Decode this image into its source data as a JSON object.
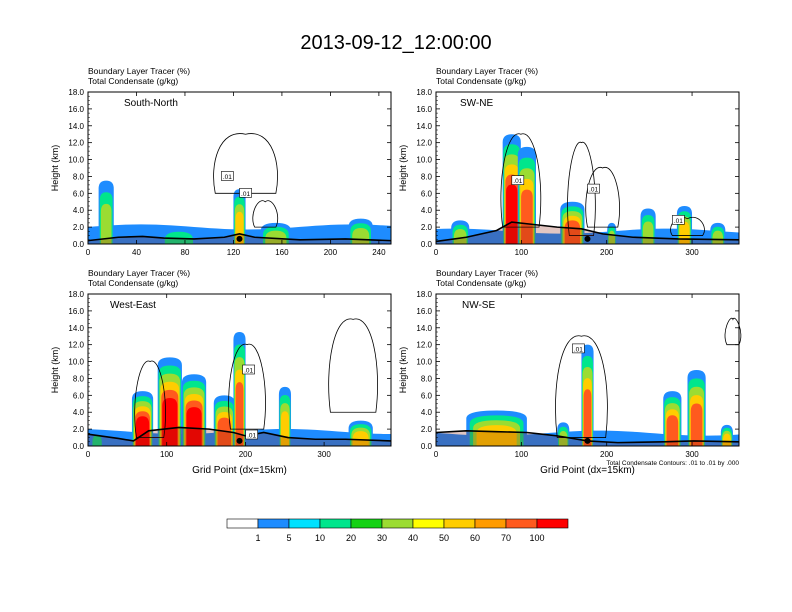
{
  "title": "2013-09-12_12:00:00",
  "footnote": "Total Condensate Contours: .01 to .01 by .000",
  "colorbar": {
    "colors": [
      "#ffffff",
      "#1e8cff",
      "#00e1ff",
      "#00e68c",
      "#14d214",
      "#9bdc32",
      "#ffff00",
      "#ffcd00",
      "#ff9b00",
      "#ff5a1e",
      "#ff0000"
    ],
    "labels": [
      "1",
      "5",
      "10",
      "20",
      "30",
      "40",
      "50",
      "60",
      "70",
      "100"
    ]
  },
  "chart_data": [
    {
      "type": "heatmap",
      "panel_label": "South-North",
      "subtitle_lines": [
        "Boundary Layer Tracer   (%)",
        "Total Condensate   (g/kg)"
      ],
      "ylabel": "Height (km)",
      "xlabel": "",
      "ylim": [
        0,
        18
      ],
      "yticks": [
        "0.0",
        "2.0",
        "4.0",
        "6.0",
        "8.0",
        "10.0",
        "12.0",
        "14.0",
        "16.0",
        "18.0"
      ],
      "xlim": [
        0,
        250
      ],
      "xticks": [
        0,
        40,
        80,
        120,
        160,
        200,
        240
      ],
      "contour_labels": [
        ".01",
        ".01"
      ]
    },
    {
      "type": "heatmap",
      "panel_label": "SW-NE",
      "subtitle_lines": [
        "Boundary Layer Tracer   (%)",
        "Total Condensate   (g/kg)"
      ],
      "ylabel": "Height (km)",
      "xlabel": "",
      "ylim": [
        0,
        18
      ],
      "yticks": [
        "0.0",
        "2.0",
        "4.0",
        "6.0",
        "8.0",
        "10.0",
        "12.0",
        "14.0",
        "16.0",
        "18.0"
      ],
      "xlim": [
        0,
        355
      ],
      "xticks": [
        0,
        100,
        200,
        300
      ],
      "contour_labels": [
        ".01",
        ".01",
        ".01"
      ]
    },
    {
      "type": "heatmap",
      "panel_label": "West-East",
      "subtitle_lines": [
        "Boundary Layer Tracer   (%)",
        "Total Condensate   (g/kg)"
      ],
      "ylabel": "Height (km)",
      "xlabel": "Grid Point (dx=15km)",
      "ylim": [
        0,
        18
      ],
      "yticks": [
        "0.0",
        "2.0",
        "4.0",
        "6.0",
        "8.0",
        "10.0",
        "12.0",
        "14.0",
        "16.0",
        "18.0"
      ],
      "xlim": [
        0,
        385
      ],
      "xticks": [
        0,
        100,
        200,
        300
      ],
      "contour_labels": [
        ".01",
        ".01"
      ]
    },
    {
      "type": "heatmap",
      "panel_label": "NW-SE",
      "subtitle_lines": [
        "Boundary Layer Tracer   (%)",
        "Total Condensate   (g/kg)"
      ],
      "ylabel": "Height (km)",
      "xlabel": "Grid Point (dx=15km)",
      "ylim": [
        0,
        18
      ],
      "yticks": [
        "0.0",
        "2.0",
        "4.0",
        "6.0",
        "8.0",
        "10.0",
        "12.0",
        "14.0",
        "16.0",
        "18.0"
      ],
      "xlim": [
        0,
        355
      ],
      "xticks": [
        0,
        100,
        200,
        300
      ],
      "contour_labels": [
        ".01"
      ]
    }
  ]
}
